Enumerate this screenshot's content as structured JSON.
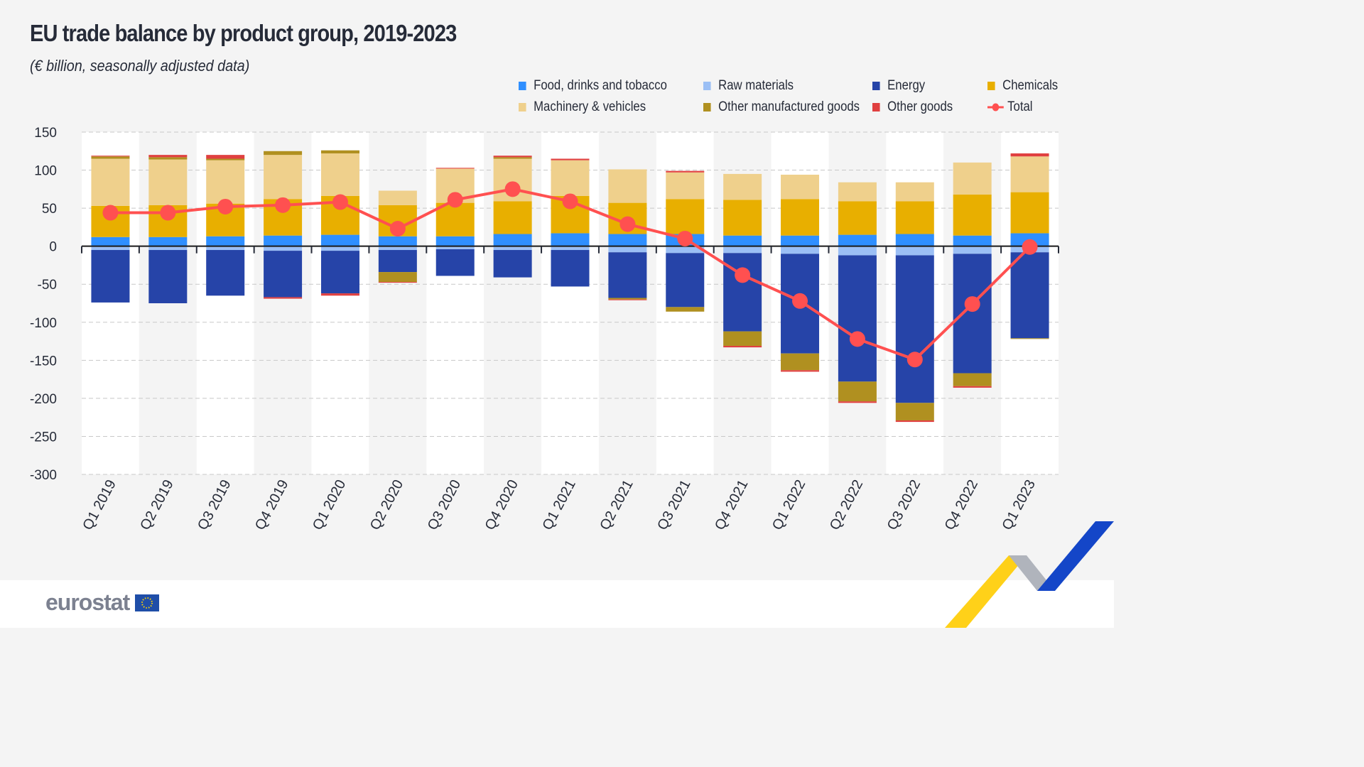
{
  "title": "EU trade balance by product group, 2019-2023",
  "subtitle": "(€ billion, seasonally adjusted data)",
  "logo_text": "eurostat",
  "chart_data": {
    "type": "bar",
    "stacked": true,
    "title": "EU trade balance by product group, 2019-2023",
    "subtitle": "(€ billion, seasonally adjusted data)",
    "categories": [
      "Q1 2019",
      "Q2 2019",
      "Q3 2019",
      "Q4 2019",
      "Q1 2020",
      "Q2 2020",
      "Q3 2020",
      "Q4 2020",
      "Q1 2021",
      "Q2 2021",
      "Q3 2021",
      "Q4 2021",
      "Q1 2022",
      "Q2 2022",
      "Q3 2022",
      "Q4 2022",
      "Q1 2023"
    ],
    "ylim": [
      -300,
      150
    ],
    "yticks": [
      150,
      100,
      50,
      0,
      -50,
      -100,
      -150,
      -200,
      -250,
      -300
    ],
    "grid": true,
    "legend_position": "top-right",
    "series": [
      {
        "name": "Food, drinks and tobacco",
        "color": "#2f8fff",
        "values": [
          12,
          12,
          13,
          14,
          15,
          13,
          13,
          16,
          17,
          16,
          16,
          14,
          14,
          15,
          16,
          14,
          17
        ]
      },
      {
        "name": "Raw materials",
        "color": "#9bbff5",
        "values": [
          -5,
          -5,
          -5,
          -6,
          -6,
          -5,
          -4,
          -5,
          -5,
          -8,
          -9,
          -9,
          -10,
          -12,
          -12,
          -10,
          -8
        ]
      },
      {
        "name": "Energy",
        "color": "#2644a8",
        "values": [
          -69,
          -70,
          -60,
          -61,
          -56,
          -29,
          -35,
          -36,
          -48,
          -60,
          -71,
          -103,
          -131,
          -166,
          -194,
          -157,
          -113
        ]
      },
      {
        "name": "Chemicals",
        "color": "#e8af00",
        "values": [
          41,
          42,
          43,
          48,
          51,
          41,
          44,
          43,
          49,
          41,
          46,
          47,
          48,
          44,
          43,
          54,
          54
        ]
      },
      {
        "name": "Machinery & vehicles",
        "color": "#efd08c",
        "values": [
          62,
          60,
          57,
          58,
          56,
          19,
          45,
          56,
          47,
          44,
          35,
          34,
          32,
          25,
          25,
          42,
          47
        ]
      },
      {
        "name": "Other manufactured goods",
        "color": "#b09020",
        "values": [
          3,
          3,
          2,
          5,
          4,
          -13,
          0,
          2,
          0,
          -2,
          -6,
          -19,
          -22,
          -26,
          -23,
          -17,
          -1
        ]
      },
      {
        "name": "Other goods",
        "color": "#e04040",
        "values": [
          1,
          3,
          5,
          -2,
          -3,
          -1,
          1,
          2,
          2,
          -1,
          2,
          -2,
          -2,
          -2,
          -2,
          -2,
          4
        ]
      }
    ],
    "total": {
      "name": "Total",
      "color": "#ff5050",
      "type": "line",
      "values": [
        44,
        44,
        52,
        54,
        58,
        23,
        61,
        75,
        59,
        29,
        10,
        -38,
        -72,
        -122,
        -149,
        -76,
        -1
      ]
    }
  }
}
